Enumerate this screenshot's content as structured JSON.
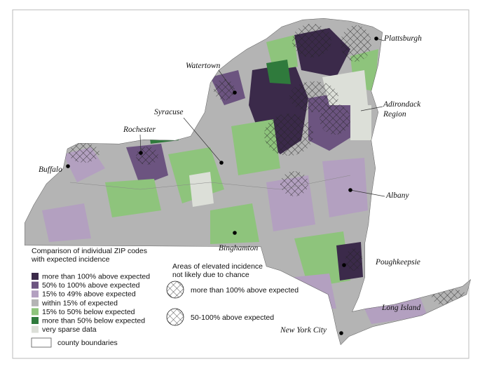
{
  "map": {
    "cities": [
      {
        "lines": [
          "Plattsburgh"
        ]
      },
      {
        "lines": [
          "Watertown"
        ]
      },
      {
        "lines": [
          "Syracuse"
        ]
      },
      {
        "lines": [
          "Rochester"
        ]
      },
      {
        "lines": [
          "Adirondack",
          "Region"
        ]
      },
      {
        "lines": [
          "Buffalo"
        ]
      },
      {
        "lines": [
          "Albany"
        ]
      },
      {
        "lines": [
          "Binghamton"
        ]
      },
      {
        "lines": [
          "Poughkeepsie"
        ]
      },
      {
        "lines": [
          "Long Island"
        ]
      },
      {
        "lines": [
          "New York City"
        ]
      }
    ]
  },
  "legend": {
    "title_lines": [
      "Comparison of individual ZIP codes",
      "with expected incidence"
    ],
    "entries": [
      {
        "label": "more than 100% above expected",
        "color": "#3b2a4a"
      },
      {
        "label": "50% to 100% above expected",
        "color": "#6c5480"
      },
      {
        "label": "15% to 49% above expected",
        "color": "#b3a0c0"
      },
      {
        "label": "within 15% of expected",
        "color": "#b4b4b4"
      },
      {
        "label": "15% to 50% below expected",
        "color": "#8ec47c"
      },
      {
        "label": "more than 50% below expected",
        "color": "#2f7a3c"
      },
      {
        "label": "very sparse data",
        "color": "#dcdfd8"
      }
    ],
    "boundary_label": "county boundaries"
  },
  "chance_legend": {
    "title_lines": [
      "Areas of elevated incidence",
      "not likely due to chance"
    ],
    "entries": [
      {
        "label": "more than 100% above expected"
      },
      {
        "label": "50-100% above expected"
      }
    ]
  }
}
